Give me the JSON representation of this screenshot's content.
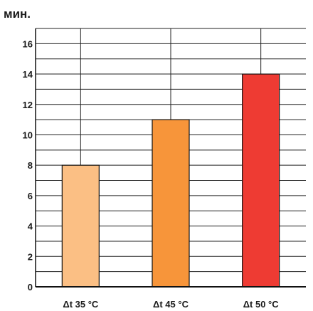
{
  "chart_data": {
    "type": "bar",
    "title": "",
    "ylabel": "мин.",
    "xlabel": "",
    "categories": [
      "Δt 35 °C",
      "Δt 45 °C",
      "Δt 50 °C"
    ],
    "values": [
      8,
      11,
      14
    ],
    "colors": [
      "#fbbf84",
      "#f7953a",
      "#ee3b33"
    ],
    "ylim": [
      0,
      17
    ],
    "yticks": [
      0,
      2,
      4,
      6,
      8,
      10,
      12,
      14,
      16
    ],
    "minor_grid_step": 1,
    "grid": true,
    "legend": "none"
  }
}
